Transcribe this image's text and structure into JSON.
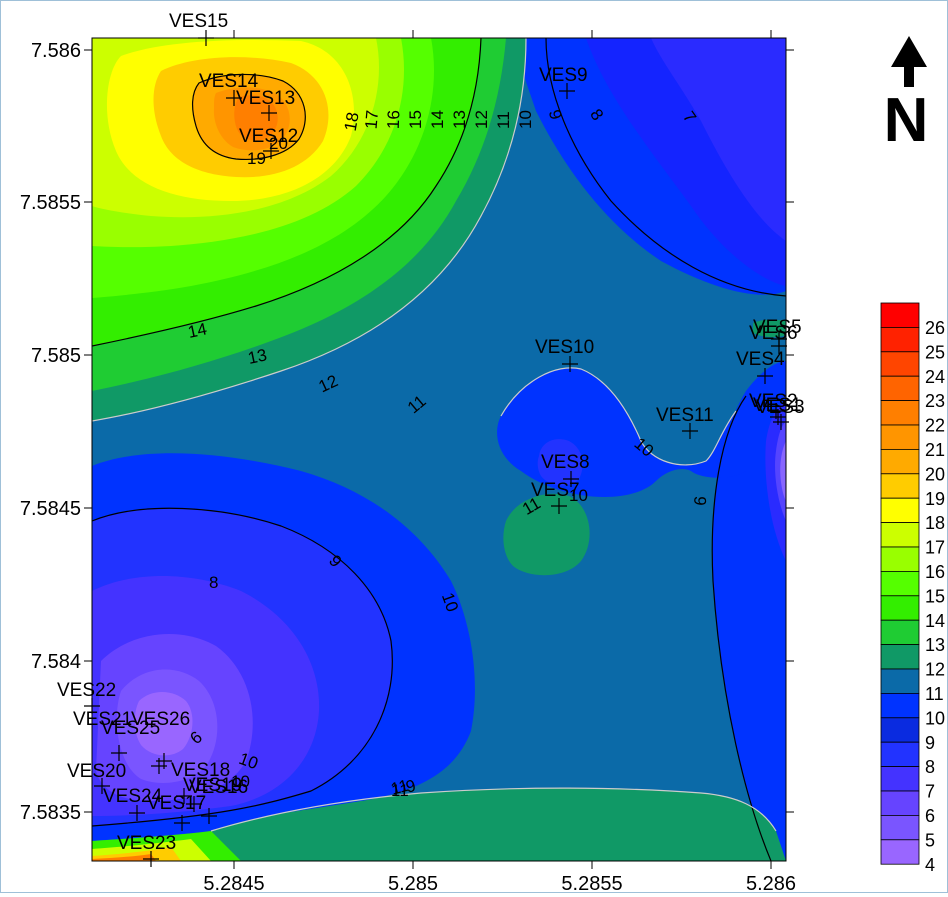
{
  "map": {
    "x_ticks": [
      "5.2845",
      "5.285",
      "5.2855",
      "5.286"
    ],
    "y_ticks": [
      "7.586",
      "7.5855",
      "7.585",
      "7.5845",
      "7.584",
      "7.5835"
    ],
    "north_arrow_letter": "N",
    "contour_labels": [
      "20",
      "19",
      "18",
      "17",
      "16",
      "15",
      "14",
      "13",
      "12",
      "11",
      "10",
      "9",
      "8",
      "7",
      "14",
      "13",
      "12",
      "11",
      "10",
      "9",
      "10",
      "11",
      "10",
      "9",
      "8",
      "9",
      "10",
      "11",
      "6",
      "10",
      "11"
    ],
    "stations": [
      "VES15",
      "VES14",
      "VES13",
      "VES12",
      "VES9",
      "VES10",
      "VES5",
      "VES6",
      "VES4",
      "VES2",
      "VES1",
      "VES3",
      "VES11",
      "VES8",
      "VES7",
      "VES22",
      "VES21",
      "VES26",
      "VES25",
      "VES20",
      "VES18",
      "VES19",
      "VES16",
      "VES24",
      "VES17",
      "VES23"
    ],
    "legend": {
      "labels": [
        "26",
        "25",
        "24",
        "23",
        "22",
        "21",
        "20",
        "19",
        "18",
        "17",
        "16",
        "15",
        "14",
        "13",
        "12",
        "11",
        "10",
        "9",
        "8",
        "7",
        "6",
        "5",
        "4"
      ],
      "colors": [
        "#ff0000",
        "#ff2200",
        "#ff4500",
        "#ff6400",
        "#ff7f00",
        "#ff9500",
        "#ffaa00",
        "#ffcc00",
        "#ffff00",
        "#ccff00",
        "#99ff00",
        "#55ff00",
        "#33ee00",
        "#1fcc33",
        "#109966",
        "#0b6aa8",
        "#0033ff",
        "#0a2be0",
        "#2233ff",
        "#4433ff",
        "#6644ff",
        "#7a55ff",
        "#9966ff"
      ]
    }
  }
}
